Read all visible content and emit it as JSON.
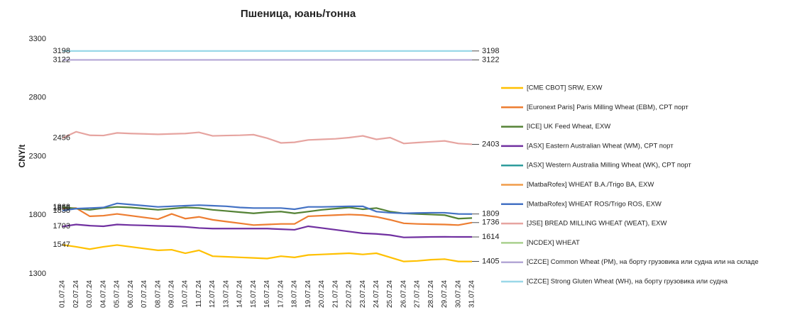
{
  "chart_data": {
    "type": "line",
    "title": "Пшеница, юань/тонна",
    "y_label": "CNY/t",
    "categories": [
      "01.07.24",
      "02.07.24",
      "03.07.24",
      "04.07.24",
      "05.07.24",
      "06.07.24",
      "07.07.24",
      "08.07.24",
      "09.07.24",
      "10.07.24",
      "11.07.24",
      "12.07.24",
      "13.07.24",
      "14.07.24",
      "15.07.24",
      "16.07.24",
      "17.07.24",
      "18.07.24",
      "19.07.24",
      "20.07.24",
      "21.07.24",
      "22.07.24",
      "23.07.24",
      "24.07.24",
      "25.07.24",
      "26.07.24",
      "27.07.24",
      "28.07.24",
      "29.07.24",
      "30.07.24",
      "31.07.24"
    ],
    "ylim": [
      1300,
      3300
    ],
    "yticks": [
      1300,
      1800,
      2300,
      2800,
      3300
    ],
    "series": [
      {
        "name": "[CME CBOT] SRW, EXW",
        "color": "#ffc000",
        "point_labels": [
          "first",
          "last"
        ],
        "values": [
          1547,
          1530,
          1510,
          1530,
          1545,
          1530,
          1515,
          1500,
          1505,
          1475,
          1500,
          1450,
          1445,
          1440,
          1435,
          1430,
          1450,
          1440,
          1460,
          1465,
          1470,
          1475,
          1465,
          1475,
          1440,
          1405,
          1410,
          1420,
          1425,
          1405,
          1405
        ]
      },
      {
        "name": "[Euronext Paris] Paris Milling Wheat (EBM), CPT порт",
        "color": "#ed7d31",
        "point_labels": [
          "first",
          "last"
        ],
        "values": [
          1858,
          1860,
          1790,
          1795,
          1810,
          1795,
          1780,
          1765,
          1810,
          1770,
          1785,
          1760,
          1745,
          1730,
          1715,
          1720,
          1725,
          1725,
          1790,
          1795,
          1800,
          1805,
          1800,
          1785,
          1760,
          1730,
          1725,
          1722,
          1720,
          1715,
          1736
        ]
      },
      {
        "name": "[ICE] UK Feed Wheat, EXW",
        "color": "#548235",
        "point_labels": [
          "first"
        ],
        "values": [
          1868,
          1855,
          1845,
          1860,
          1870,
          1865,
          1855,
          1845,
          1855,
          1865,
          1860,
          1845,
          1835,
          1825,
          1815,
          1825,
          1830,
          1815,
          1830,
          1845,
          1855,
          1865,
          1850,
          1860,
          1830,
          1815,
          1810,
          1805,
          1800,
          1770,
          1775
        ]
      },
      {
        "name": "[ASX] Eastern Australian Wheat (WM), CPT порт",
        "color": "#7030a0",
        "point_labels": [
          "first",
          "last"
        ],
        "values": [
          1703,
          1720,
          1710,
          1705,
          1720,
          1715,
          1712,
          1708,
          1705,
          1700,
          1690,
          1685,
          1685,
          1685,
          1685,
          1685,
          1680,
          1675,
          1705,
          1690,
          1675,
          1660,
          1645,
          1640,
          1630,
          1610,
          1612,
          1614,
          1615,
          1614,
          1614
        ]
      },
      {
        "name": "[ASX] Western Australia Milling Wheat (WK), CPT порт",
        "color": "#2e9c9c",
        "point_labels": [],
        "values": [
          null,
          null,
          null,
          null,
          null,
          null,
          null,
          null,
          null,
          null,
          null,
          null,
          null,
          null,
          null,
          null,
          null,
          null,
          null,
          null,
          null,
          null,
          null,
          null,
          null,
          null,
          null,
          null,
          null,
          null,
          null
        ]
      },
      {
        "name": "[MatbaRofex] WHEAT B.A./Trigo BA, EXW",
        "color": "#f19c48",
        "point_labels": [],
        "values": [
          null,
          null,
          null,
          null,
          null,
          null,
          null,
          null,
          null,
          null,
          null,
          null,
          null,
          null,
          null,
          null,
          null,
          null,
          null,
          null,
          null,
          null,
          null,
          null,
          null,
          null,
          null,
          null,
          null,
          null,
          null
        ]
      },
      {
        "name": "[MatbaRofex] WHEAT ROS/Trigo ROS, EXW",
        "color": "#4472c4",
        "point_labels": [
          "first",
          "last"
        ],
        "values": [
          1838,
          1855,
          1860,
          1865,
          1900,
          1890,
          1880,
          1870,
          1875,
          1880,
          1885,
          1880,
          1875,
          1865,
          1860,
          1860,
          1860,
          1850,
          1870,
          1870,
          1872,
          1875,
          1875,
          1830,
          1820,
          1815,
          1818,
          1820,
          1820,
          1810,
          1809
        ]
      },
      {
        "name": "[JSE] BREAD MILLING WHEAT (WEAT), EXW",
        "color": "#e6a4a0",
        "point_labels": [
          "first",
          "last"
        ],
        "values": [
          2456,
          2510,
          2480,
          2478,
          2500,
          2495,
          2492,
          2488,
          2492,
          2495,
          2505,
          2475,
          2478,
          2480,
          2485,
          2455,
          2415,
          2420,
          2440,
          2445,
          2450,
          2460,
          2475,
          2445,
          2460,
          2410,
          2418,
          2425,
          2432,
          2410,
          2403
        ]
      },
      {
        "name": "[NCDEX] WHEAT",
        "color": "#a9d18e",
        "point_labels": [],
        "values": [
          null,
          null,
          null,
          null,
          null,
          null,
          null,
          null,
          null,
          null,
          null,
          null,
          null,
          null,
          null,
          null,
          null,
          null,
          null,
          null,
          null,
          null,
          null,
          null,
          null,
          null,
          null,
          null,
          null,
          null,
          null
        ]
      },
      {
        "name": "[CZCE] Common Wheat (PM), на борту грузовика или судна или на складе",
        "color": "#b4a7d6",
        "point_labels": [
          "first",
          "last"
        ],
        "values": [
          3122,
          3122,
          3122,
          3122,
          3122,
          3122,
          3122,
          3122,
          3122,
          3122,
          3122,
          3122,
          3122,
          3122,
          3122,
          3122,
          3122,
          3122,
          3122,
          3122,
          3122,
          3122,
          3122,
          3122,
          3122,
          3122,
          3122,
          3122,
          3122,
          3122,
          3122
        ]
      },
      {
        "name": "[CZCE] Strong Gluten Wheat (WH), на борту грузовика или судна",
        "color": "#9ad8e8",
        "point_labels": [
          "first",
          "last"
        ],
        "values": [
          3198,
          3198,
          3198,
          3198,
          3198,
          3198,
          3198,
          3198,
          3198,
          3198,
          3198,
          3198,
          3198,
          3198,
          3198,
          3198,
          3198,
          3198,
          3198,
          3198,
          3198,
          3198,
          3198,
          3198,
          3198,
          3198,
          3198,
          3198,
          3198,
          3198,
          3198
        ]
      }
    ]
  }
}
